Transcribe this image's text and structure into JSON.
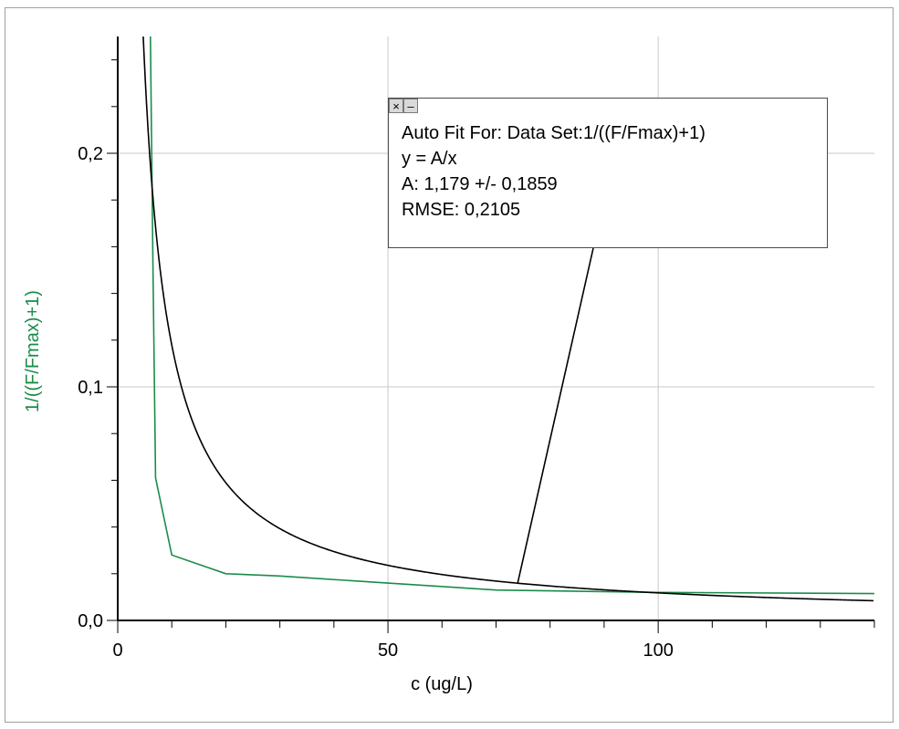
{
  "chart_data": {
    "type": "line",
    "xlabel": "c (ug/L)",
    "ylabel": "1/((F/Fmax)+1)",
    "xlim": [
      0,
      140
    ],
    "ylim": [
      0,
      0.25
    ],
    "x_ticks": [
      0,
      50,
      100
    ],
    "x_tick_labels": [
      "0",
      "50",
      "100"
    ],
    "y_ticks": [
      0,
      0.1,
      0.2
    ],
    "y_tick_labels": [
      "0,0",
      "0,1",
      "0,2"
    ],
    "grid": true,
    "series": [
      {
        "color": "#1a8c4a",
        "x": [
          6,
          6.5,
          7,
          10,
          20,
          30,
          50,
          70,
          100,
          140
        ],
        "y": [
          0.26,
          0.155,
          0.061,
          0.028,
          0.02,
          0.019,
          0.016,
          0.013,
          0.012,
          0.0115
        ]
      }
    ],
    "fit": {
      "color": "#000000",
      "equation": "y = A/x",
      "A": 1.179,
      "x_range": [
        4.6,
        140
      ]
    }
  },
  "fit_box": {
    "close_glyph": "×",
    "minimize_glyph": "–",
    "title": "Auto Fit For:  Data Set:1/((F/Fmax)+1)",
    "equation": "y = A/x",
    "param": "A: 1,179 +/- 0,1859",
    "rmse": "RMSE: 0,2105"
  }
}
